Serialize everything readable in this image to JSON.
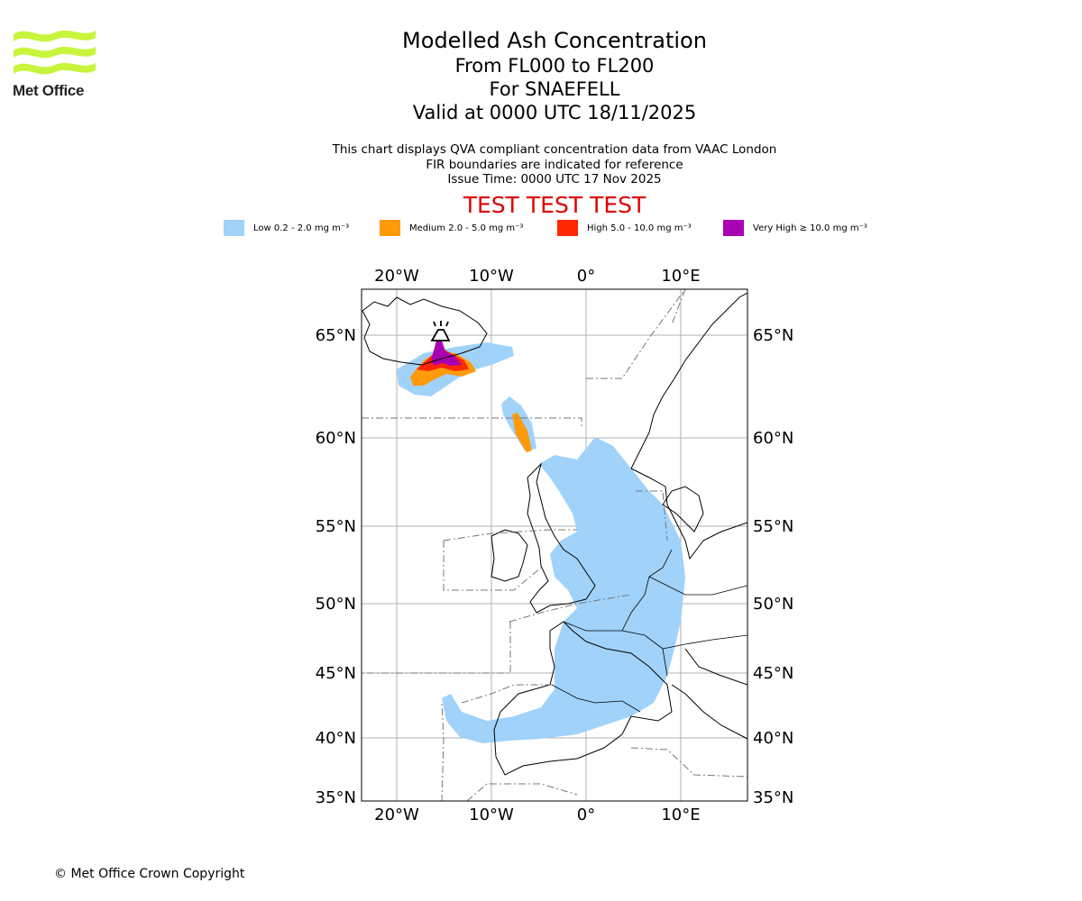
{
  "logo": {
    "text": "Met Office",
    "icon": "met-office-wave-logo",
    "color": "#c8f53c"
  },
  "title": {
    "line1": "Modelled Ash Concentration",
    "line2": "From FL000 to FL200",
    "line3": "For SNAEFELL",
    "line4": "Valid at 0000 UTC 18/11/2025"
  },
  "subtitle": {
    "line1": "This chart displays QVA compliant concentration data from VAAC London",
    "line2": "FIR boundaries are indicated for reference",
    "line3": "Issue Time: 0000 UTC 17 Nov 2025"
  },
  "banner": {
    "text": "TEST TEST TEST",
    "color": "#e00000"
  },
  "legend": [
    {
      "label": "Low 0.2 - 2.0 mg m⁻³",
      "color": "#a0d2fa"
    },
    {
      "label": "Medium 2.0 - 5.0 mg m⁻³",
      "color": "#ff9a0a"
    },
    {
      "label": "High 5.0 - 10.0 mg m⁻³",
      "color": "#ff2800"
    },
    {
      "label": "Very High ≥ 10.0 mg m⁻³",
      "color": "#aa00b4"
    }
  ],
  "map": {
    "lon_labels": [
      "20°W",
      "10°W",
      "0°",
      "10°E"
    ],
    "lat_labels": [
      "65°N",
      "60°N",
      "55°N",
      "50°N",
      "45°N",
      "40°N",
      "35°N"
    ],
    "volcano_icon": "volcano-icon",
    "volcano_name": "SNAEFELL"
  },
  "copyright": "© Met Office Crown Copyright"
}
